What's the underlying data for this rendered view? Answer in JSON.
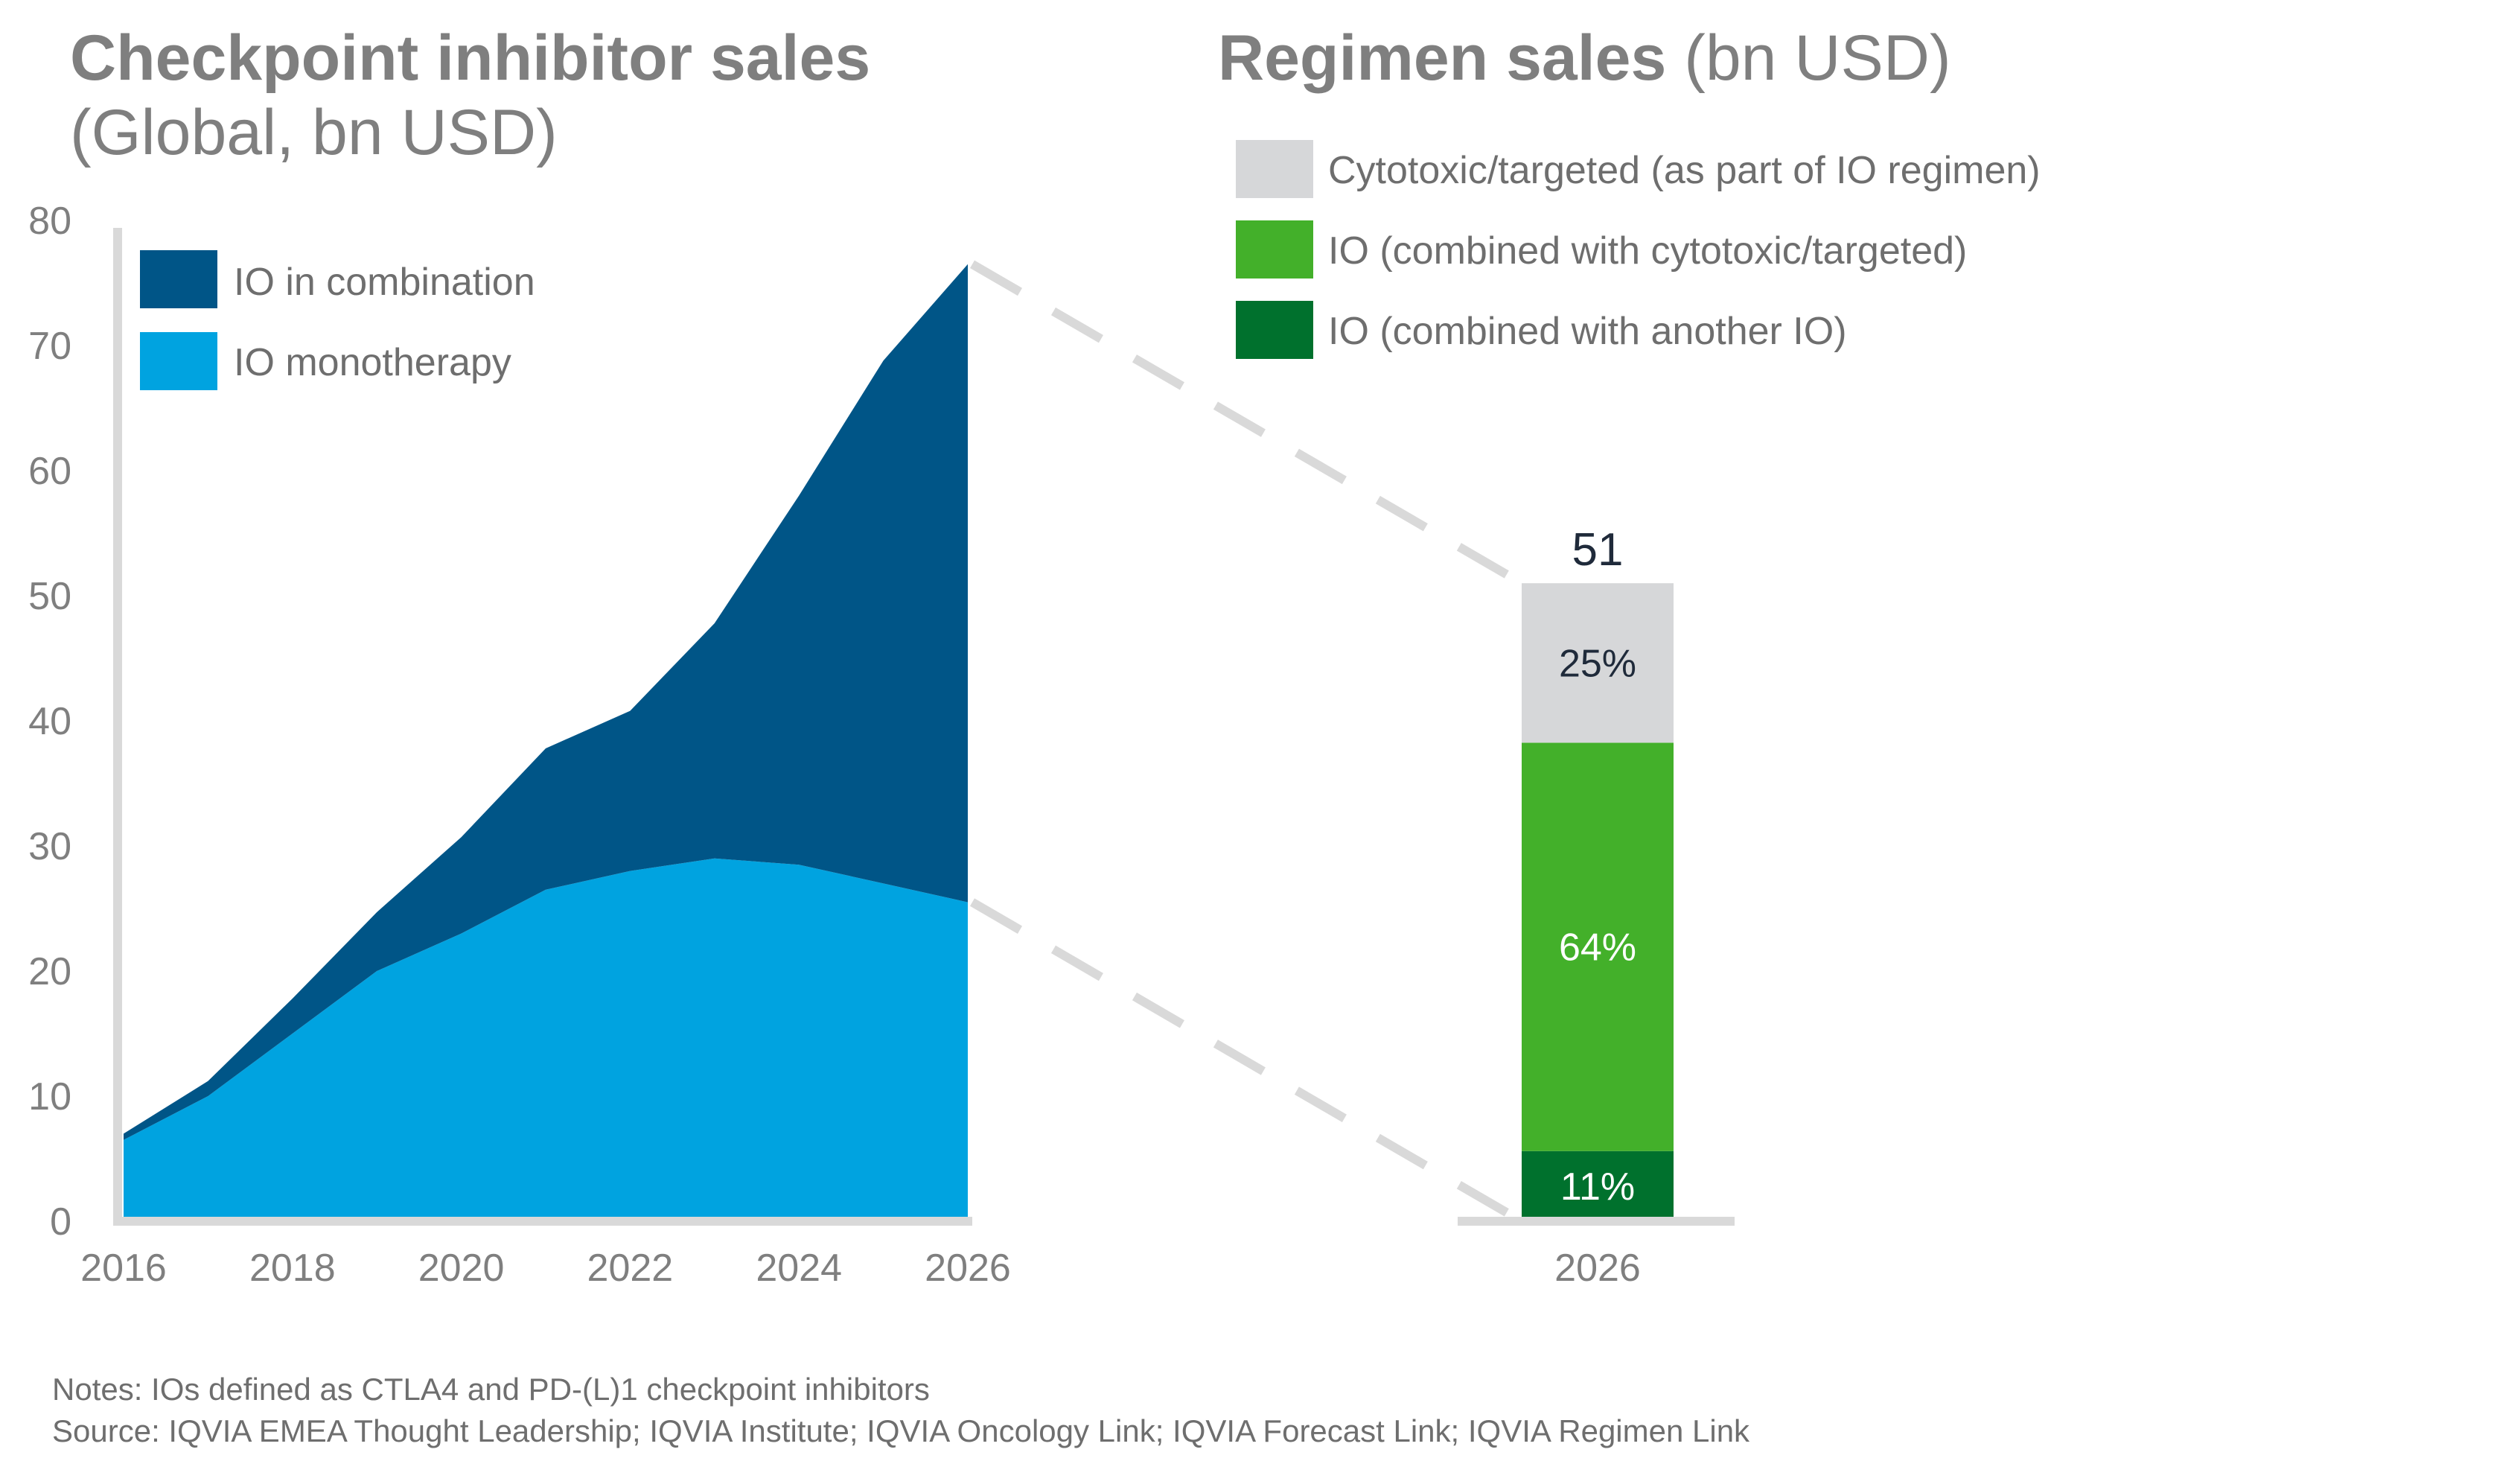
{
  "left_panel": {
    "title_bold": "Checkpoint inhibitor sales",
    "title_sub": "(Global, bn USD)"
  },
  "right_panel": {
    "title_bold": "Regimen sales",
    "title_rest": " (bn USD)"
  },
  "legend_left": [
    {
      "label": "IO in combination",
      "color": "#005587"
    },
    {
      "label": "IO monotherapy",
      "color": "#00a3e0"
    }
  ],
  "legend_right": [
    {
      "label": "Cytotoxic/targeted (as part of IO regimen)",
      "color": "#d6d7d9"
    },
    {
      "label": "IO (combined with cytotoxic/targeted)",
      "color": "#43b02a"
    },
    {
      "label": "IO (combined with another IO)",
      "color": "#00712d"
    }
  ],
  "notes": {
    "line1": "Notes: IOs defined as CTLA4 and PD-(L)1 checkpoint inhibitors",
    "line2": "Source: IQVIA EMEA Thought Leadership; IQVIA Institute; IQVIA Oncology Link; IQVIA Forecast Link; IQVIA Regimen Link"
  },
  "colors": {
    "axis": "#d9d9d9",
    "tick_text": "#7f7f7f",
    "dash": "#d9d9d9",
    "label_dark": "#1f2a3a",
    "label_light": "#ffffff"
  },
  "chart_data": [
    {
      "type": "area",
      "stacked": true,
      "x": [
        2016,
        2017,
        2018,
        2019,
        2020,
        2021,
        2022,
        2023,
        2024,
        2025,
        2026
      ],
      "xticks": [
        "2016",
        "2018",
        "2020",
        "2022",
        "2024",
        "2026"
      ],
      "yticks": [
        "0",
        "10",
        "20",
        "30",
        "40",
        "50",
        "60",
        "70",
        "80"
      ],
      "ylim": [
        0,
        80
      ],
      "series": [
        {
          "name": "IO monotherapy",
          "color": "#00a3e0",
          "values": [
            6.5,
            10,
            15,
            20,
            23,
            26.5,
            28,
            29,
            28.5,
            27,
            25.5
          ]
        },
        {
          "name": "IO in combination",
          "color": "#005587",
          "values": [
            0.5,
            1.2,
            2.8,
            4.7,
            7.7,
            11.3,
            12.8,
            18.8,
            29.5,
            41.8,
            51
          ]
        }
      ],
      "legend": "top-left",
      "grid": false
    },
    {
      "type": "bar",
      "stacked": true,
      "categories": [
        "2026"
      ],
      "total": 51,
      "total_label": "51",
      "ylim": [
        0,
        80
      ],
      "series": [
        {
          "name": "IO (combined with another IO)",
          "color": "#00712d",
          "percent": 11,
          "label": "11%"
        },
        {
          "name": "IO (combined with cytotoxic/targeted)",
          "color": "#43b02a",
          "percent": 64,
          "label": "64%"
        },
        {
          "name": "Cytotoxic/targeted (as part of IO regimen)",
          "color": "#d6d7d9",
          "percent": 25,
          "label": "25%"
        }
      ],
      "legend": "top",
      "grid": false
    }
  ]
}
